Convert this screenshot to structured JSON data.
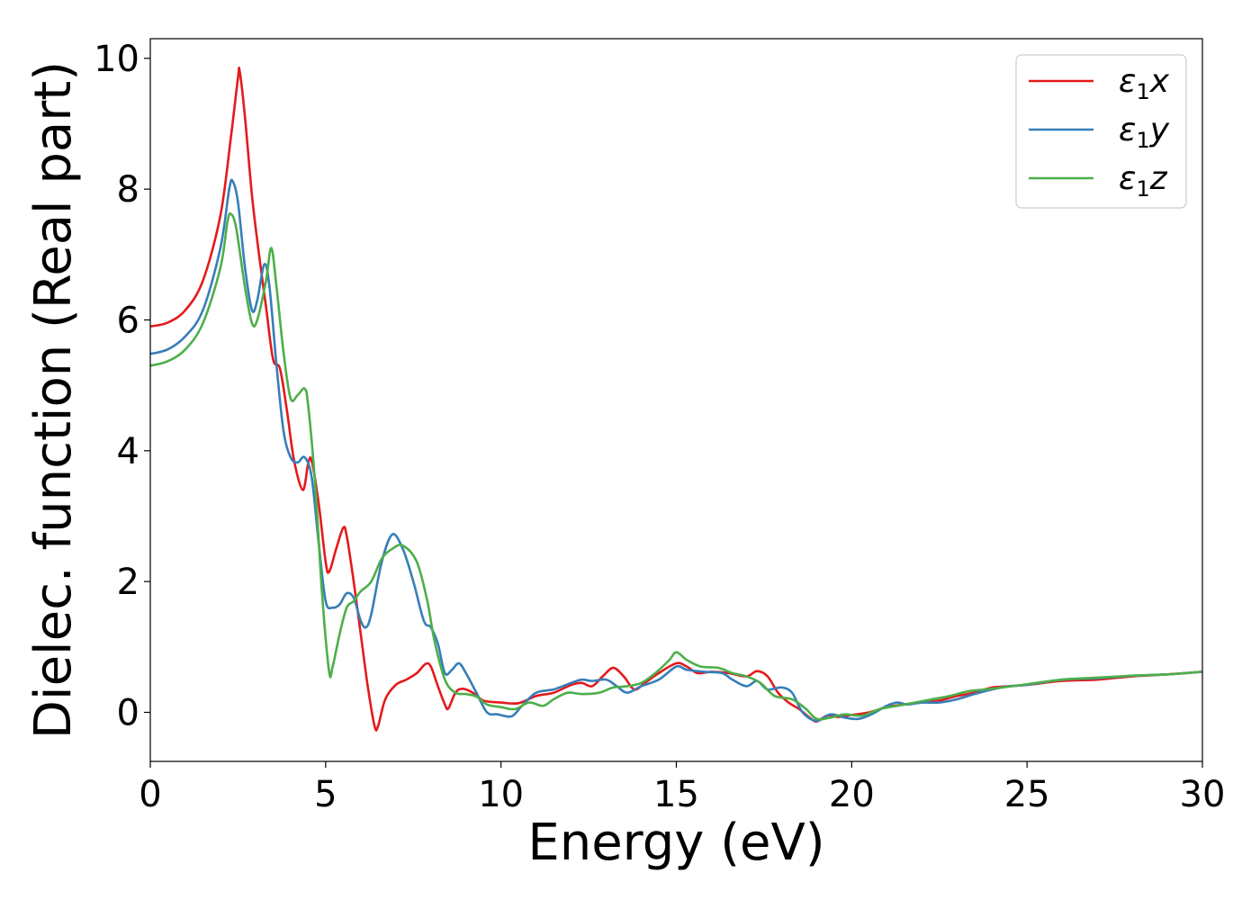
{
  "chart_data": {
    "type": "line",
    "title": "",
    "xlabel": "Energy (eV)",
    "ylabel": "Dielec. function (Real part)",
    "xlim": [
      0,
      30
    ],
    "ylim": [
      -0.75,
      10.3
    ],
    "xticks": [
      0,
      5,
      10,
      15,
      20,
      25,
      30
    ],
    "yticks": [
      0,
      2,
      4,
      6,
      8,
      10
    ],
    "xtick_labels": [
      "0",
      "5",
      "10",
      "15",
      "20",
      "25",
      "30"
    ],
    "ytick_labels": [
      "0",
      "2",
      "4",
      "6",
      "8",
      "10"
    ],
    "grid": false,
    "legend_position": "top-right",
    "series": [
      {
        "name": "ε₁x",
        "legend_label": {
          "eps": "ε",
          "sub": "1",
          "comp": "x"
        },
        "color": "#e41a1c",
        "points": [
          [
            0,
            5.9
          ],
          [
            0.5,
            5.96
          ],
          [
            1.0,
            6.15
          ],
          [
            1.5,
            6.6
          ],
          [
            2.0,
            7.6
          ],
          [
            2.3,
            8.8
          ],
          [
            2.5,
            9.7
          ],
          [
            2.55,
            9.8
          ],
          [
            2.7,
            9.1
          ],
          [
            2.9,
            7.9
          ],
          [
            3.1,
            7.0
          ],
          [
            3.3,
            6.2
          ],
          [
            3.5,
            5.4
          ],
          [
            3.7,
            5.25
          ],
          [
            3.9,
            4.6
          ],
          [
            4.1,
            3.85
          ],
          [
            4.35,
            3.4
          ],
          [
            4.5,
            3.8
          ],
          [
            4.6,
            3.85
          ],
          [
            4.8,
            3.2
          ],
          [
            5.0,
            2.3
          ],
          [
            5.1,
            2.15
          ],
          [
            5.3,
            2.5
          ],
          [
            5.5,
            2.82
          ],
          [
            5.6,
            2.7
          ],
          [
            5.8,
            2.0
          ],
          [
            6.0,
            1.2
          ],
          [
            6.2,
            0.4
          ],
          [
            6.4,
            -0.22
          ],
          [
            6.5,
            -0.2
          ],
          [
            6.7,
            0.2
          ],
          [
            7.0,
            0.42
          ],
          [
            7.3,
            0.5
          ],
          [
            7.6,
            0.6
          ],
          [
            7.85,
            0.74
          ],
          [
            8.0,
            0.7
          ],
          [
            8.2,
            0.4
          ],
          [
            8.4,
            0.12
          ],
          [
            8.5,
            0.06
          ],
          [
            8.7,
            0.3
          ],
          [
            8.9,
            0.36
          ],
          [
            9.2,
            0.3
          ],
          [
            9.5,
            0.18
          ],
          [
            10.0,
            0.15
          ],
          [
            10.5,
            0.14
          ],
          [
            11.0,
            0.25
          ],
          [
            11.5,
            0.3
          ],
          [
            12.0,
            0.42
          ],
          [
            12.3,
            0.45
          ],
          [
            12.6,
            0.4
          ],
          [
            12.9,
            0.55
          ],
          [
            13.2,
            0.68
          ],
          [
            13.5,
            0.55
          ],
          [
            13.8,
            0.35
          ],
          [
            14.1,
            0.45
          ],
          [
            14.5,
            0.6
          ],
          [
            15.0,
            0.75
          ],
          [
            15.3,
            0.7
          ],
          [
            15.6,
            0.6
          ],
          [
            16.0,
            0.62
          ],
          [
            16.5,
            0.6
          ],
          [
            17.0,
            0.55
          ],
          [
            17.3,
            0.63
          ],
          [
            17.6,
            0.55
          ],
          [
            17.9,
            0.3
          ],
          [
            18.2,
            0.15
          ],
          [
            18.5,
            0.05
          ],
          [
            18.8,
            -0.08
          ],
          [
            19.0,
            -0.14
          ],
          [
            19.3,
            -0.05
          ],
          [
            19.6,
            -0.07
          ],
          [
            20.0,
            -0.04
          ],
          [
            20.5,
            0.0
          ],
          [
            21.0,
            0.08
          ],
          [
            21.5,
            0.12
          ],
          [
            22.0,
            0.15
          ],
          [
            22.5,
            0.18
          ],
          [
            23.0,
            0.25
          ],
          [
            23.5,
            0.3
          ],
          [
            24.0,
            0.38
          ],
          [
            24.5,
            0.4
          ],
          [
            25.0,
            0.42
          ],
          [
            26.0,
            0.48
          ],
          [
            27.0,
            0.5
          ],
          [
            28.0,
            0.55
          ],
          [
            29.0,
            0.58
          ],
          [
            30.0,
            0.62
          ]
        ]
      },
      {
        "name": "ε₁y",
        "legend_label": {
          "eps": "ε",
          "sub": "1",
          "comp": "y"
        },
        "color": "#377eb8",
        "points": [
          [
            0,
            5.48
          ],
          [
            0.5,
            5.55
          ],
          [
            1.0,
            5.75
          ],
          [
            1.5,
            6.15
          ],
          [
            2.0,
            7.1
          ],
          [
            2.25,
            8.0
          ],
          [
            2.35,
            8.12
          ],
          [
            2.5,
            7.8
          ],
          [
            2.7,
            6.8
          ],
          [
            2.9,
            6.15
          ],
          [
            3.05,
            6.3
          ],
          [
            3.25,
            6.85
          ],
          [
            3.4,
            6.5
          ],
          [
            3.6,
            5.3
          ],
          [
            3.8,
            4.3
          ],
          [
            4.0,
            3.9
          ],
          [
            4.2,
            3.82
          ],
          [
            4.4,
            3.9
          ],
          [
            4.6,
            3.6
          ],
          [
            4.8,
            2.6
          ],
          [
            5.0,
            1.7
          ],
          [
            5.2,
            1.6
          ],
          [
            5.4,
            1.65
          ],
          [
            5.6,
            1.82
          ],
          [
            5.8,
            1.75
          ],
          [
            6.0,
            1.4
          ],
          [
            6.15,
            1.3
          ],
          [
            6.3,
            1.5
          ],
          [
            6.6,
            2.3
          ],
          [
            6.9,
            2.72
          ],
          [
            7.2,
            2.5
          ],
          [
            7.5,
            2.0
          ],
          [
            7.8,
            1.4
          ],
          [
            8.0,
            1.3
          ],
          [
            8.2,
            1.05
          ],
          [
            8.4,
            0.6
          ],
          [
            8.6,
            0.65
          ],
          [
            8.8,
            0.75
          ],
          [
            9.0,
            0.6
          ],
          [
            9.3,
            0.3
          ],
          [
            9.6,
            0.0
          ],
          [
            9.9,
            -0.03
          ],
          [
            10.3,
            -0.06
          ],
          [
            10.6,
            0.1
          ],
          [
            11.0,
            0.3
          ],
          [
            11.5,
            0.35
          ],
          [
            12.0,
            0.45
          ],
          [
            12.3,
            0.5
          ],
          [
            12.6,
            0.48
          ],
          [
            13.0,
            0.5
          ],
          [
            13.3,
            0.4
          ],
          [
            13.6,
            0.3
          ],
          [
            14.0,
            0.4
          ],
          [
            14.5,
            0.5
          ],
          [
            15.0,
            0.7
          ],
          [
            15.3,
            0.65
          ],
          [
            15.8,
            0.62
          ],
          [
            16.3,
            0.6
          ],
          [
            16.6,
            0.5
          ],
          [
            17.0,
            0.4
          ],
          [
            17.3,
            0.48
          ],
          [
            17.6,
            0.35
          ],
          [
            18.0,
            0.38
          ],
          [
            18.3,
            0.3
          ],
          [
            18.6,
            0.0
          ],
          [
            19.0,
            -0.13
          ],
          [
            19.4,
            -0.03
          ],
          [
            19.8,
            -0.08
          ],
          [
            20.2,
            -0.1
          ],
          [
            20.6,
            -0.02
          ],
          [
            21.0,
            0.1
          ],
          [
            21.3,
            0.15
          ],
          [
            21.6,
            0.12
          ],
          [
            22.0,
            0.15
          ],
          [
            22.5,
            0.15
          ],
          [
            23.0,
            0.2
          ],
          [
            23.5,
            0.28
          ],
          [
            24.0,
            0.35
          ],
          [
            24.5,
            0.4
          ],
          [
            25.0,
            0.42
          ],
          [
            26.0,
            0.5
          ],
          [
            27.0,
            0.52
          ],
          [
            28.0,
            0.56
          ],
          [
            29.0,
            0.58
          ],
          [
            30.0,
            0.62
          ]
        ]
      },
      {
        "name": "ε₁z",
        "legend_label": {
          "eps": "ε",
          "sub": "1",
          "comp": "z"
        },
        "color": "#4daf4a",
        "points": [
          [
            0,
            5.3
          ],
          [
            0.5,
            5.37
          ],
          [
            1.0,
            5.55
          ],
          [
            1.5,
            5.95
          ],
          [
            2.0,
            6.8
          ],
          [
            2.2,
            7.5
          ],
          [
            2.3,
            7.62
          ],
          [
            2.45,
            7.4
          ],
          [
            2.7,
            6.5
          ],
          [
            2.9,
            5.95
          ],
          [
            3.05,
            6.0
          ],
          [
            3.3,
            6.6
          ],
          [
            3.45,
            7.1
          ],
          [
            3.6,
            6.5
          ],
          [
            3.8,
            5.5
          ],
          [
            4.0,
            4.8
          ],
          [
            4.2,
            4.85
          ],
          [
            4.4,
            4.95
          ],
          [
            4.5,
            4.7
          ],
          [
            4.7,
            3.5
          ],
          [
            4.9,
            1.8
          ],
          [
            5.1,
            0.62
          ],
          [
            5.2,
            0.7
          ],
          [
            5.4,
            1.2
          ],
          [
            5.6,
            1.6
          ],
          [
            5.8,
            1.7
          ],
          [
            6.0,
            1.85
          ],
          [
            6.3,
            2.0
          ],
          [
            6.6,
            2.35
          ],
          [
            6.9,
            2.5
          ],
          [
            7.2,
            2.55
          ],
          [
            7.6,
            2.3
          ],
          [
            7.9,
            1.7
          ],
          [
            8.1,
            1.1
          ],
          [
            8.4,
            0.5
          ],
          [
            8.7,
            0.3
          ],
          [
            9.0,
            0.28
          ],
          [
            9.3,
            0.24
          ],
          [
            9.6,
            0.12
          ],
          [
            10.0,
            0.08
          ],
          [
            10.4,
            0.05
          ],
          [
            10.8,
            0.15
          ],
          [
            11.2,
            0.1
          ],
          [
            11.5,
            0.2
          ],
          [
            11.9,
            0.3
          ],
          [
            12.3,
            0.28
          ],
          [
            12.8,
            0.3
          ],
          [
            13.2,
            0.38
          ],
          [
            13.6,
            0.4
          ],
          [
            14.0,
            0.45
          ],
          [
            14.4,
            0.6
          ],
          [
            14.8,
            0.8
          ],
          [
            15.0,
            0.92
          ],
          [
            15.3,
            0.8
          ],
          [
            15.7,
            0.7
          ],
          [
            16.2,
            0.68
          ],
          [
            16.6,
            0.6
          ],
          [
            17.0,
            0.55
          ],
          [
            17.4,
            0.45
          ],
          [
            17.8,
            0.25
          ],
          [
            18.3,
            0.2
          ],
          [
            18.7,
            0.05
          ],
          [
            19.0,
            -0.1
          ],
          [
            19.4,
            -0.08
          ],
          [
            19.8,
            -0.03
          ],
          [
            20.3,
            -0.05
          ],
          [
            20.8,
            0.05
          ],
          [
            21.3,
            0.1
          ],
          [
            21.8,
            0.15
          ],
          [
            22.3,
            0.2
          ],
          [
            22.8,
            0.25
          ],
          [
            23.3,
            0.32
          ],
          [
            23.8,
            0.35
          ],
          [
            24.3,
            0.38
          ],
          [
            25.0,
            0.43
          ],
          [
            26.0,
            0.5
          ],
          [
            27.0,
            0.53
          ],
          [
            28.0,
            0.56
          ],
          [
            29.0,
            0.58
          ],
          [
            30.0,
            0.62
          ]
        ]
      }
    ]
  }
}
